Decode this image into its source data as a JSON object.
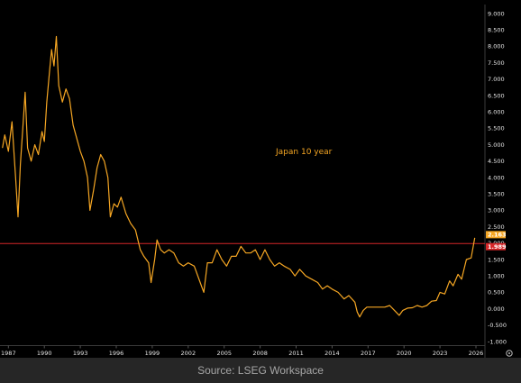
{
  "chart_data": {
    "type": "line",
    "title": "",
    "series": [
      {
        "name": "Japan 10 year",
        "color": "#f5a623",
        "points": [
          [
            1986.5,
            4.9
          ],
          [
            1986.7,
            5.3
          ],
          [
            1987.0,
            4.8
          ],
          [
            1987.3,
            5.7
          ],
          [
            1987.6,
            4.0
          ],
          [
            1987.8,
            2.8
          ],
          [
            1988.0,
            4.4
          ],
          [
            1988.2,
            5.5
          ],
          [
            1988.4,
            6.6
          ],
          [
            1988.6,
            4.9
          ],
          [
            1988.9,
            4.5
          ],
          [
            1989.2,
            5.0
          ],
          [
            1989.5,
            4.7
          ],
          [
            1989.8,
            5.4
          ],
          [
            1990.0,
            5.1
          ],
          [
            1990.2,
            6.3
          ],
          [
            1990.4,
            7.1
          ],
          [
            1990.6,
            7.9
          ],
          [
            1990.8,
            7.4
          ],
          [
            1991.0,
            8.3
          ],
          [
            1991.2,
            6.8
          ],
          [
            1991.5,
            6.3
          ],
          [
            1991.8,
            6.7
          ],
          [
            1992.1,
            6.4
          ],
          [
            1992.4,
            5.6
          ],
          [
            1992.7,
            5.2
          ],
          [
            1993.0,
            4.8
          ],
          [
            1993.3,
            4.5
          ],
          [
            1993.6,
            4.0
          ],
          [
            1993.8,
            3.0
          ],
          [
            1994.1,
            3.6
          ],
          [
            1994.4,
            4.3
          ],
          [
            1994.7,
            4.7
          ],
          [
            1995.0,
            4.5
          ],
          [
            1995.3,
            4.0
          ],
          [
            1995.5,
            2.8
          ],
          [
            1995.8,
            3.2
          ],
          [
            1996.1,
            3.1
          ],
          [
            1996.4,
            3.4
          ],
          [
            1996.8,
            2.9
          ],
          [
            1997.2,
            2.6
          ],
          [
            1997.6,
            2.4
          ],
          [
            1998.0,
            1.8
          ],
          [
            1998.3,
            1.6
          ],
          [
            1998.7,
            1.4
          ],
          [
            1998.9,
            0.8
          ],
          [
            1999.2,
            1.5
          ],
          [
            1999.4,
            2.1
          ],
          [
            1999.7,
            1.8
          ],
          [
            2000.0,
            1.7
          ],
          [
            2000.4,
            1.8
          ],
          [
            2000.8,
            1.7
          ],
          [
            2001.2,
            1.4
          ],
          [
            2001.6,
            1.3
          ],
          [
            2002.0,
            1.4
          ],
          [
            2002.5,
            1.3
          ],
          [
            2003.0,
            0.8
          ],
          [
            2003.3,
            0.5
          ],
          [
            2003.6,
            1.4
          ],
          [
            2004.0,
            1.4
          ],
          [
            2004.4,
            1.8
          ],
          [
            2004.8,
            1.5
          ],
          [
            2005.2,
            1.3
          ],
          [
            2005.6,
            1.6
          ],
          [
            2006.0,
            1.6
          ],
          [
            2006.4,
            1.9
          ],
          [
            2006.8,
            1.7
          ],
          [
            2007.2,
            1.7
          ],
          [
            2007.6,
            1.8
          ],
          [
            2008.0,
            1.5
          ],
          [
            2008.4,
            1.8
          ],
          [
            2008.8,
            1.5
          ],
          [
            2009.2,
            1.3
          ],
          [
            2009.6,
            1.4
          ],
          [
            2010.0,
            1.3
          ],
          [
            2010.5,
            1.2
          ],
          [
            2010.9,
            1.0
          ],
          [
            2011.3,
            1.2
          ],
          [
            2011.8,
            1.0
          ],
          [
            2012.3,
            0.9
          ],
          [
            2012.8,
            0.8
          ],
          [
            2013.2,
            0.6
          ],
          [
            2013.6,
            0.7
          ],
          [
            2014.0,
            0.6
          ],
          [
            2014.5,
            0.5
          ],
          [
            2015.0,
            0.3
          ],
          [
            2015.4,
            0.4
          ],
          [
            2015.9,
            0.2
          ],
          [
            2016.1,
            -0.1
          ],
          [
            2016.3,
            -0.25
          ],
          [
            2016.6,
            -0.05
          ],
          [
            2016.9,
            0.05
          ],
          [
            2017.4,
            0.05
          ],
          [
            2017.9,
            0.05
          ],
          [
            2018.4,
            0.05
          ],
          [
            2018.8,
            0.1
          ],
          [
            2019.2,
            -0.05
          ],
          [
            2019.6,
            -0.2
          ],
          [
            2019.9,
            -0.05
          ],
          [
            2020.3,
            0.02
          ],
          [
            2020.7,
            0.03
          ],
          [
            2021.1,
            0.1
          ],
          [
            2021.5,
            0.05
          ],
          [
            2021.9,
            0.1
          ],
          [
            2022.3,
            0.23
          ],
          [
            2022.7,
            0.25
          ],
          [
            2023.0,
            0.5
          ],
          [
            2023.4,
            0.45
          ],
          [
            2023.8,
            0.85
          ],
          [
            2024.1,
            0.7
          ],
          [
            2024.5,
            1.05
          ],
          [
            2024.8,
            0.9
          ],
          [
            2025.2,
            1.5
          ],
          [
            2025.6,
            1.55
          ],
          [
            2025.9,
            2.163
          ]
        ]
      }
    ],
    "hline": {
      "value": 1.989,
      "color": "#d62728"
    },
    "badges": [
      {
        "text": "2.163",
        "value": 2.163,
        "color": "#f5a623",
        "text_color": "#000000"
      },
      {
        "text": "1.989",
        "value": 1.989,
        "color": "#d62728",
        "text_color": "#ffffff"
      }
    ],
    "x_ticks": [
      "1987",
      "1990",
      "1993",
      "1996",
      "1999",
      "2002",
      "2005",
      "2008",
      "2011",
      "2014",
      "2017",
      "2020",
      "2023",
      "2026"
    ],
    "x_tick_values": [
      1987,
      1990,
      1993,
      1996,
      1999,
      2002,
      2005,
      2008,
      2011,
      2014,
      2017,
      2020,
      2023,
      2026
    ],
    "y_ticks": [
      "9.000",
      "8.500",
      "8.000",
      "7.500",
      "7.000",
      "6.500",
      "6.000",
      "5.500",
      "5.000",
      "4.500",
      "4.000",
      "3.500",
      "3.000",
      "2.500",
      "2.000",
      "1.500",
      "1.000",
      "0.500",
      "0.000",
      "-0.500",
      "-1.000"
    ],
    "xlim": [
      1986.3,
      2026.6
    ],
    "ylim": [
      -1.0,
      9.0
    ],
    "grid": false,
    "annotation": "Japan 10 year"
  },
  "source_text": "Source: LSEG Workspace",
  "settings_icon": "gear-icon"
}
